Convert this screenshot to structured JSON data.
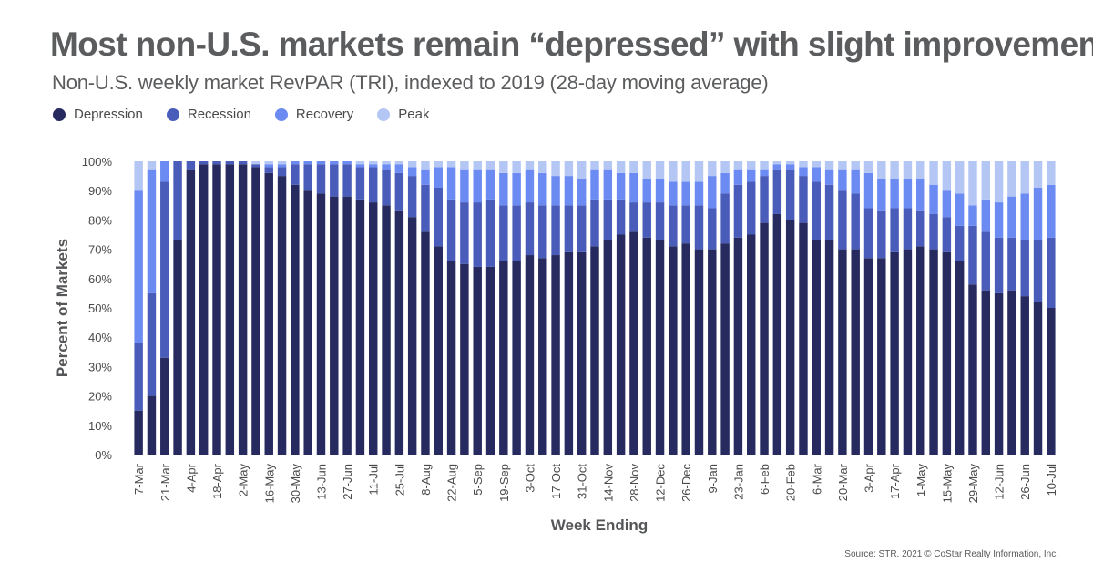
{
  "title": "Most non-U.S. markets remain “depressed” with slight improvement",
  "subtitle": "Non-U.S. weekly market RevPAR (TRI), indexed to 2019 (28-day moving average)",
  "source": "Source: STR. 2021 © CoStar Realty Information, Inc.",
  "legend": [
    {
      "label": "Depression",
      "color": "#262a5e"
    },
    {
      "label": "Recession",
      "color": "#4a5cb9"
    },
    {
      "label": "Recovery",
      "color": "#6b8bf2"
    },
    {
      "label": "Peak",
      "color": "#b4c6f4"
    }
  ],
  "chart_data": {
    "type": "bar",
    "stacked": true,
    "title": "Most non-U.S. markets remain “depressed” with slight improvement",
    "subtitle": "Non-U.S. weekly market RevPAR (TRI), indexed to 2019 (28-day moving average)",
    "xlabel": "Week Ending",
    "ylabel": "Percent of Markets",
    "ylim": [
      0,
      100
    ],
    "yticks": [
      "0%",
      "10%",
      "20%",
      "30%",
      "40%",
      "50%",
      "60%",
      "70%",
      "80%",
      "90%",
      "100%"
    ],
    "grid": false,
    "legend_position": "top-left",
    "x_tick_labels": [
      "7-Mar",
      "21-Mar",
      "4-Apr",
      "18-Apr",
      "2-May",
      "16-May",
      "30-May",
      "13-Jun",
      "27-Jun",
      "11-Jul",
      "25-Jul",
      "8-Aug",
      "22-Aug",
      "5-Sep",
      "19-Sep",
      "3-Oct",
      "17-Oct",
      "31-Oct",
      "14-Nov",
      "28-Nov",
      "12-Dec",
      "26-Dec",
      "9-Jan",
      "23-Jan",
      "6-Feb",
      "20-Feb",
      "6-Mar",
      "20-Mar",
      "3-Apr",
      "17-Apr",
      "1-May",
      "15-May",
      "29-May",
      "12-Jun",
      "26-Jun",
      "10-Jul"
    ],
    "series": [
      {
        "name": "Depression",
        "color": "#262a5e",
        "values": [
          15,
          20,
          33,
          73,
          97,
          99,
          99,
          99,
          99,
          98,
          96,
          95,
          92,
          90,
          89,
          88,
          88,
          87,
          86,
          85,
          83,
          81,
          76,
          71,
          66,
          65,
          64,
          64,
          66,
          66,
          68,
          67,
          68,
          69,
          69,
          71,
          73,
          75,
          76,
          74,
          73,
          71,
          72,
          70,
          70,
          72,
          74,
          75,
          79,
          82,
          80,
          79,
          73,
          73,
          70,
          70,
          67,
          67,
          69,
          70,
          71,
          70,
          69,
          66,
          58,
          56,
          55,
          56,
          54,
          52,
          50
        ]
      },
      {
        "name": "Recession",
        "color": "#4a5cb9",
        "values": [
          23,
          35,
          60,
          27,
          3,
          1,
          1,
          1,
          1,
          1,
          2,
          3,
          7,
          9,
          10,
          11,
          11,
          11,
          12,
          12,
          13,
          14,
          16,
          20,
          21,
          21,
          22,
          23,
          19,
          19,
          18,
          18,
          17,
          16,
          16,
          16,
          14,
          12,
          10,
          12,
          13,
          14,
          13,
          15,
          14,
          17,
          18,
          18,
          16,
          15,
          17,
          16,
          20,
          19,
          20,
          19,
          17,
          16,
          15,
          14,
          12,
          12,
          12,
          12,
          20,
          20,
          19,
          18,
          19,
          21,
          24
        ]
      },
      {
        "name": "Recovery",
        "color": "#6b8bf2",
        "values": [
          52,
          42,
          7,
          0,
          0,
          0,
          0,
          0,
          0,
          0,
          1,
          1,
          1,
          1,
          1,
          1,
          1,
          1,
          1,
          2,
          3,
          3,
          5,
          7,
          11,
          11,
          11,
          10,
          11,
          11,
          11,
          11,
          10,
          10,
          9,
          10,
          10,
          9,
          10,
          8,
          8,
          8,
          8,
          8,
          11,
          7,
          5,
          4,
          2,
          2,
          2,
          3,
          5,
          5,
          7,
          8,
          12,
          11,
          10,
          10,
          11,
          10,
          9,
          11,
          7,
          11,
          12,
          14,
          16,
          18,
          18
        ]
      },
      {
        "name": "Peak",
        "color": "#b4c6f4",
        "values": [
          10,
          3,
          0,
          0,
          0,
          0,
          0,
          0,
          0,
          1,
          1,
          1,
          0,
          0,
          0,
          0,
          0,
          1,
          1,
          1,
          1,
          2,
          3,
          2,
          2,
          3,
          3,
          3,
          4,
          4,
          3,
          4,
          5,
          5,
          6,
          3,
          3,
          4,
          4,
          6,
          6,
          7,
          7,
          7,
          5,
          4,
          3,
          3,
          3,
          1,
          1,
          2,
          2,
          3,
          3,
          3,
          4,
          6,
          6,
          6,
          6,
          8,
          10,
          11,
          15,
          13,
          14,
          12,
          11,
          9,
          8
        ]
      }
    ]
  }
}
